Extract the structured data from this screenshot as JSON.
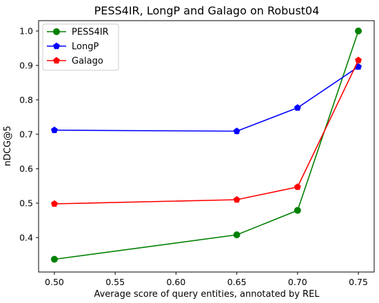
{
  "chart_data": {
    "type": "line",
    "title": "PESS4IR, LongP and Galago on Robust04",
    "xlabel": "Average score of query entities, annotated by REL",
    "ylabel": "nDCG@5",
    "x": [
      0.5,
      0.65,
      0.7,
      0.75
    ],
    "xlim": [
      0.487,
      0.763
    ],
    "ylim": [
      0.3,
      1.03
    ],
    "xticks": [
      "0.50",
      "0.55",
      "0.60",
      "0.65",
      "0.70",
      "0.75"
    ],
    "yticks": [
      "0.4",
      "0.5",
      "0.6",
      "0.7",
      "0.8",
      "0.9",
      "1.0"
    ],
    "grid": false,
    "legend_position": "top-left",
    "series": [
      {
        "name": "PESS4IR",
        "color": "#008000",
        "marker": "circle",
        "values": [
          0.337,
          0.408,
          0.479,
          1.0
        ]
      },
      {
        "name": "LongP",
        "color": "#0000ff",
        "marker": "pentagon",
        "values": [
          0.712,
          0.709,
          0.777,
          0.896
        ]
      },
      {
        "name": "Galago",
        "color": "#ff0000",
        "marker": "pentagon",
        "values": [
          0.498,
          0.51,
          0.547,
          0.915
        ]
      }
    ]
  }
}
